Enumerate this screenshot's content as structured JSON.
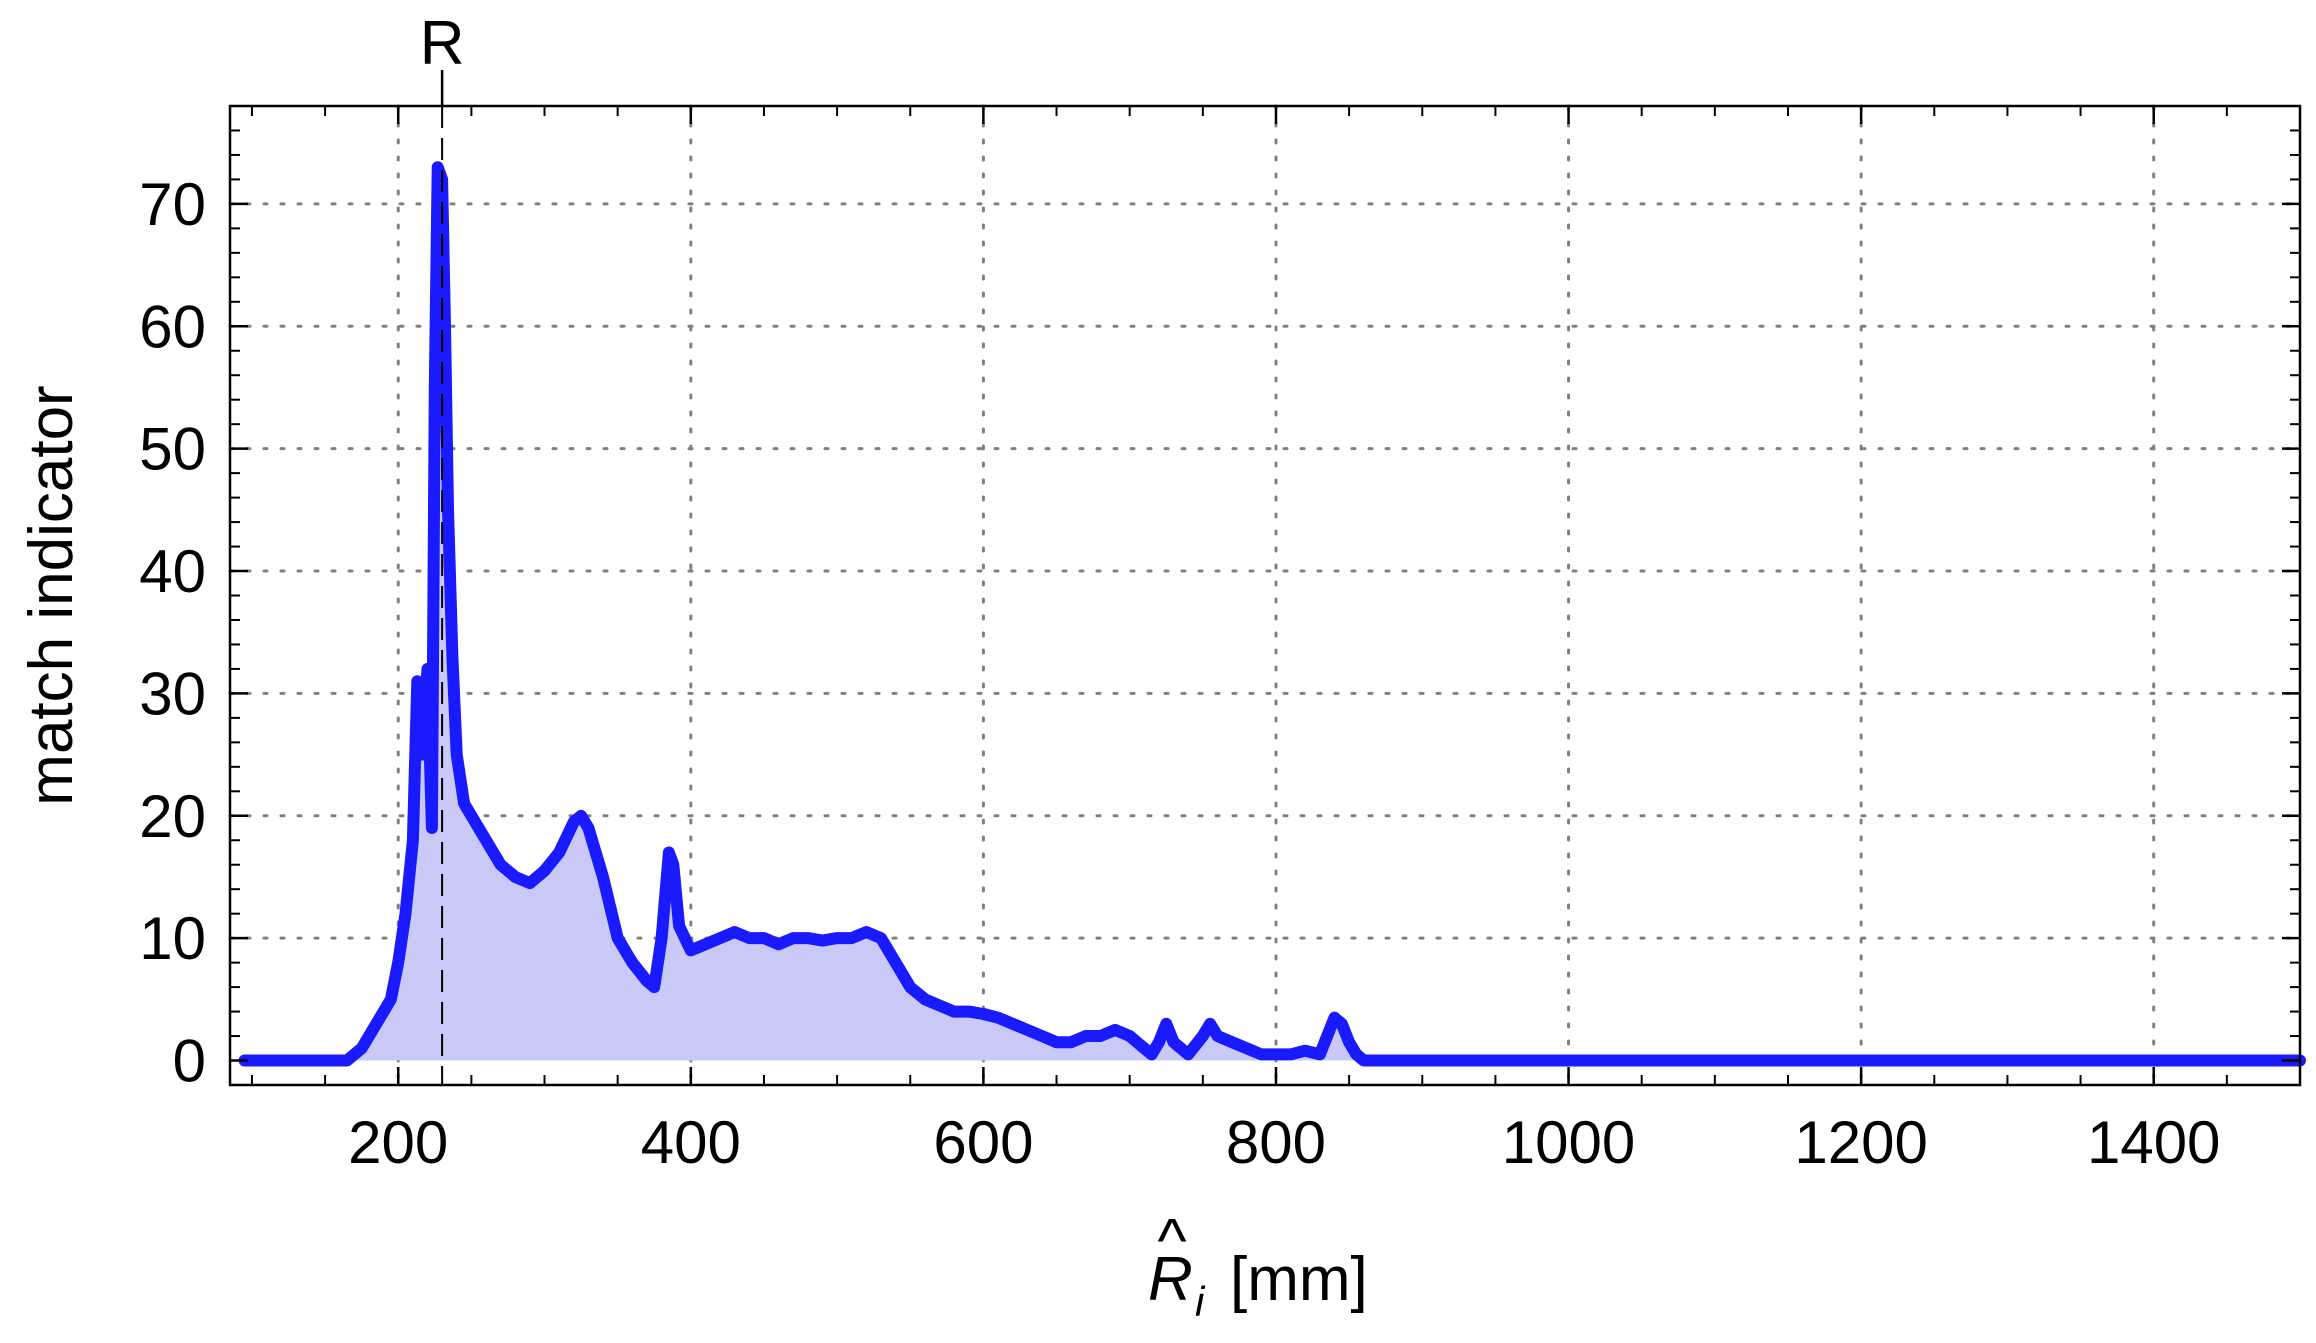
{
  "chart_data": {
    "type": "area",
    "xlabel_symbol": "R",
    "xlabel_hat": "^",
    "xlabel_subscript": "i",
    "xlabel_unit": "[mm]",
    "ylabel": "match indicator",
    "marker": {
      "label": "R",
      "x": 230
    },
    "xlim": [
      85,
      1500
    ],
    "ylim": [
      -2,
      78
    ],
    "x_ticks": [
      200,
      400,
      600,
      800,
      1000,
      1200,
      1400
    ],
    "x_tick_labels": [
      "200",
      "400",
      "600",
      "800",
      "1000",
      "1200",
      "1400"
    ],
    "y_ticks": [
      0,
      10,
      20,
      30,
      40,
      50,
      60,
      70
    ],
    "y_tick_labels": [
      "0",
      "10",
      "20",
      "30",
      "40",
      "50",
      "60",
      "70"
    ],
    "grid": true,
    "series": [
      {
        "line_color": "#1a1aff",
        "fill_color": "#c9c9f7",
        "x": [
          95,
          120,
          150,
          165,
          175,
          185,
          195,
          200,
          205,
          210,
          213,
          216,
          220,
          223,
          225,
          227,
          230,
          232,
          234,
          237,
          240,
          245,
          250,
          260,
          270,
          280,
          290,
          300,
          310,
          320,
          325,
          330,
          340,
          350,
          360,
          370,
          375,
          380,
          385,
          388,
          392,
          400,
          410,
          420,
          430,
          440,
          450,
          460,
          470,
          480,
          490,
          500,
          510,
          520,
          530,
          540,
          550,
          560,
          570,
          580,
          590,
          600,
          610,
          620,
          630,
          640,
          650,
          660,
          670,
          680,
          690,
          700,
          710,
          715,
          720,
          725,
          730,
          740,
          750,
          755,
          760,
          770,
          780,
          790,
          800,
          810,
          820,
          830,
          835,
          840,
          845,
          850,
          855,
          860,
          900,
          1000,
          1200,
          1400,
          1500
        ],
        "y": [
          0,
          0,
          0,
          0,
          1,
          3,
          5,
          8,
          12,
          18,
          31,
          25,
          32,
          19,
          55,
          73,
          72,
          60,
          45,
          33,
          25,
          21,
          20,
          18,
          16,
          15,
          14.5,
          15.5,
          17,
          19.5,
          20,
          19,
          15,
          10,
          8,
          6.5,
          6,
          10,
          17,
          16,
          11,
          9,
          9.5,
          10,
          10.5,
          10,
          10,
          9.5,
          10,
          10,
          9.8,
          10,
          10,
          10.5,
          10,
          8,
          6,
          5,
          4.5,
          4,
          4,
          3.8,
          3.5,
          3,
          2.5,
          2,
          1.5,
          1.5,
          2,
          2,
          2.5,
          2,
          1,
          0.5,
          1.5,
          3,
          1.5,
          0.5,
          2,
          3,
          2,
          1.5,
          1,
          0.5,
          0.5,
          0.5,
          0.8,
          0.5,
          2,
          3.5,
          3,
          1.5,
          0.5,
          0,
          0,
          0,
          0,
          0,
          0
        ]
      }
    ]
  }
}
